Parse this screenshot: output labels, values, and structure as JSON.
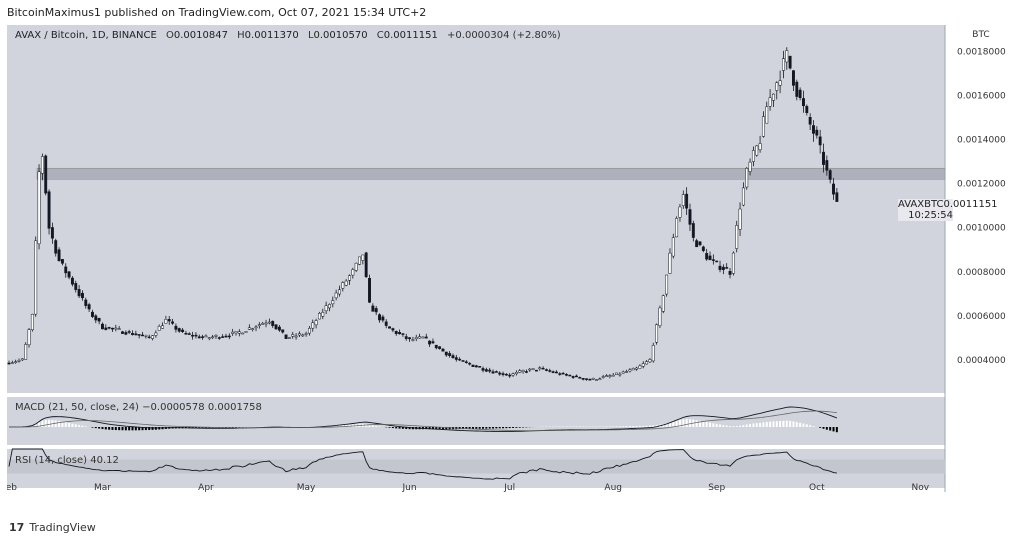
{
  "header": {
    "text": "BitcoinMaximus1 published on TradingView.com, Oct 07, 2021 15:34 UTC+2"
  },
  "legend_main": {
    "title": "AVAX / Bitcoin, 1D, BINANCE",
    "o_label": "O",
    "o_value": "0.0010847",
    "h_label": "H",
    "h_value": "0.0011370",
    "l_label": "L",
    "l_value": "0.0010570",
    "c_label": "C",
    "c_value": "0.0011151",
    "change": "+0.0000304 (+2.80%)"
  },
  "legend_macd": {
    "label": "MACD (21, 50, close, 24)",
    "v1": "−0.0000578",
    "v2": "0.0001758"
  },
  "legend_rsi": {
    "label": "RSI (14, close)",
    "v1": "40.12"
  },
  "price_box": {
    "symbol": "AVAXBTC",
    "price": "0.0011151",
    "countdown": "10:25:54"
  },
  "footer": {
    "brand": "TradingView"
  },
  "colors": {
    "panel_bg": "#d1d4dc",
    "candle": "#131722",
    "zone": "#aeb1bb",
    "up_hist": "#ffffff",
    "down_hist": "#000000"
  },
  "chart_data": {
    "type": "candlestick",
    "axis_unit": "BTC",
    "y_ticks": [
      "0.0018000",
      "0.0016000",
      "0.0014000",
      "0.0012000",
      "0.0010000",
      "0.0008000",
      "0.0006000",
      "0.0004000"
    ],
    "x_ticks": [
      "Feb",
      "Mar",
      "Apr",
      "May",
      "Jun",
      "Jul",
      "Aug",
      "Sep",
      "Oct",
      "Nov"
    ],
    "resistance_zone": [
      0.00122,
      0.00127
    ],
    "price_path": [
      [
        "2021-02-01",
        0.00039
      ],
      [
        "2021-02-05",
        0.0004
      ],
      [
        "2021-02-08",
        0.0006
      ],
      [
        "2021-02-10",
        0.00125
      ],
      [
        "2021-02-11",
        0.00133
      ],
      [
        "2021-02-13",
        0.001
      ],
      [
        "2021-02-16",
        0.00085
      ],
      [
        "2021-02-20",
        0.00075
      ],
      [
        "2021-02-25",
        0.00062
      ],
      [
        "2021-03-01",
        0.00055
      ],
      [
        "2021-03-10",
        0.00052
      ],
      [
        "2021-03-15",
        0.0005
      ],
      [
        "2021-03-20",
        0.00058
      ],
      [
        "2021-03-25",
        0.00052
      ],
      [
        "2021-04-01",
        0.0005
      ],
      [
        "2021-04-10",
        0.00052
      ],
      [
        "2021-04-15",
        0.00055
      ],
      [
        "2021-04-20",
        0.00058
      ],
      [
        "2021-04-25",
        0.0005
      ],
      [
        "2021-05-01",
        0.00052
      ],
      [
        "2021-05-05",
        0.0006
      ],
      [
        "2021-05-10",
        0.0007
      ],
      [
        "2021-05-15",
        0.0008
      ],
      [
        "2021-05-18",
        0.00088
      ],
      [
        "2021-05-20",
        0.00065
      ],
      [
        "2021-05-25",
        0.00055
      ],
      [
        "2021-06-01",
        0.00049
      ],
      [
        "2021-06-05",
        0.0005
      ],
      [
        "2021-06-10",
        0.00045
      ],
      [
        "2021-06-15",
        0.0004
      ],
      [
        "2021-06-25",
        0.00035
      ],
      [
        "2021-07-01",
        0.00033
      ],
      [
        "2021-07-05",
        0.00035
      ],
      [
        "2021-07-10",
        0.00036
      ],
      [
        "2021-07-15",
        0.00034
      ],
      [
        "2021-07-25",
        0.00031
      ],
      [
        "2021-08-01",
        0.00033
      ],
      [
        "2021-08-08",
        0.00036
      ],
      [
        "2021-08-12",
        0.0004
      ],
      [
        "2021-08-16",
        0.0007
      ],
      [
        "2021-08-20",
        0.00105
      ],
      [
        "2021-08-22",
        0.00115
      ],
      [
        "2021-08-25",
        0.00095
      ],
      [
        "2021-08-30",
        0.00085
      ],
      [
        "2021-09-05",
        0.0008
      ],
      [
        "2021-09-08",
        0.0011
      ],
      [
        "2021-09-10",
        0.00125
      ],
      [
        "2021-09-14",
        0.0014
      ],
      [
        "2021-09-16",
        0.00155
      ],
      [
        "2021-09-20",
        0.0017
      ],
      [
        "2021-09-22",
        0.00178
      ],
      [
        "2021-09-25",
        0.00162
      ],
      [
        "2021-09-28",
        0.0015
      ],
      [
        "2021-10-01",
        0.0014
      ],
      [
        "2021-10-05",
        0.0012
      ],
      [
        "2021-10-07",
        0.00111
      ]
    ]
  }
}
